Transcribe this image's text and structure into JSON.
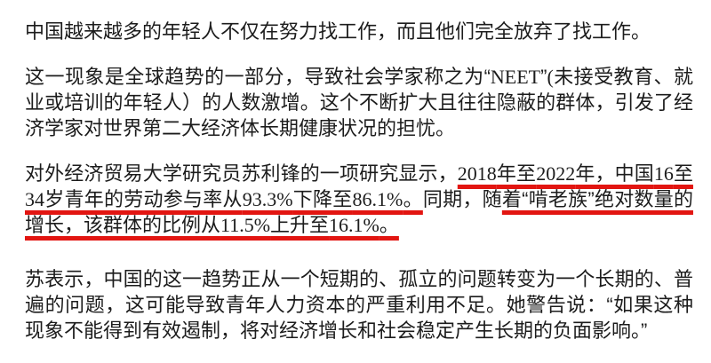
{
  "page": {
    "background_color": "#ffffff",
    "text_color": "#1c1c1c",
    "underline_color": "#e21511"
  },
  "article": {
    "paragraphs": [
      {
        "segments": [
          {
            "text": "中国越来越多的年轻人不仅在努力找工作，而且他们完全放弃了找工作。",
            "underline": false
          }
        ]
      },
      {
        "segments": [
          {
            "text": "这一现象是全球趋势的一部分，导致社会学家称之为“NEET”(未接受教育、就业或培训的年轻人）的人数激增。这个不断扩大且往往隐蔽的群体，引发了经济学家对世界第二大经济体长期健康状况的担忧。",
            "underline": false
          }
        ]
      },
      {
        "segments": [
          {
            "text": "对外经济贸易大学研究员苏利锋的一项研究显示，",
            "underline": false
          },
          {
            "text": "2018年至2022年，中国16至34岁青年的劳动参与率从93.3%下降至86.1%。",
            "underline": true
          },
          {
            "text": "同期，随",
            "underline": false
          },
          {
            "text": "着“啃老族”绝对数量的增长，该群体的比例从11.5%上升至16.1%。",
            "underline": true
          }
        ]
      },
      {
        "segments": [
          {
            "text": "苏表示，中国的这一趋势正从一个短期的、孤立的问题转变为一个长期的、普遍的问题，这可能导致青年人力资本的严重利用不足。她警告说：“如果这种现象不能得到有效遏制，将对经济增长和社会稳定产生长期的负面影响。”",
            "underline": false
          }
        ]
      }
    ]
  }
}
